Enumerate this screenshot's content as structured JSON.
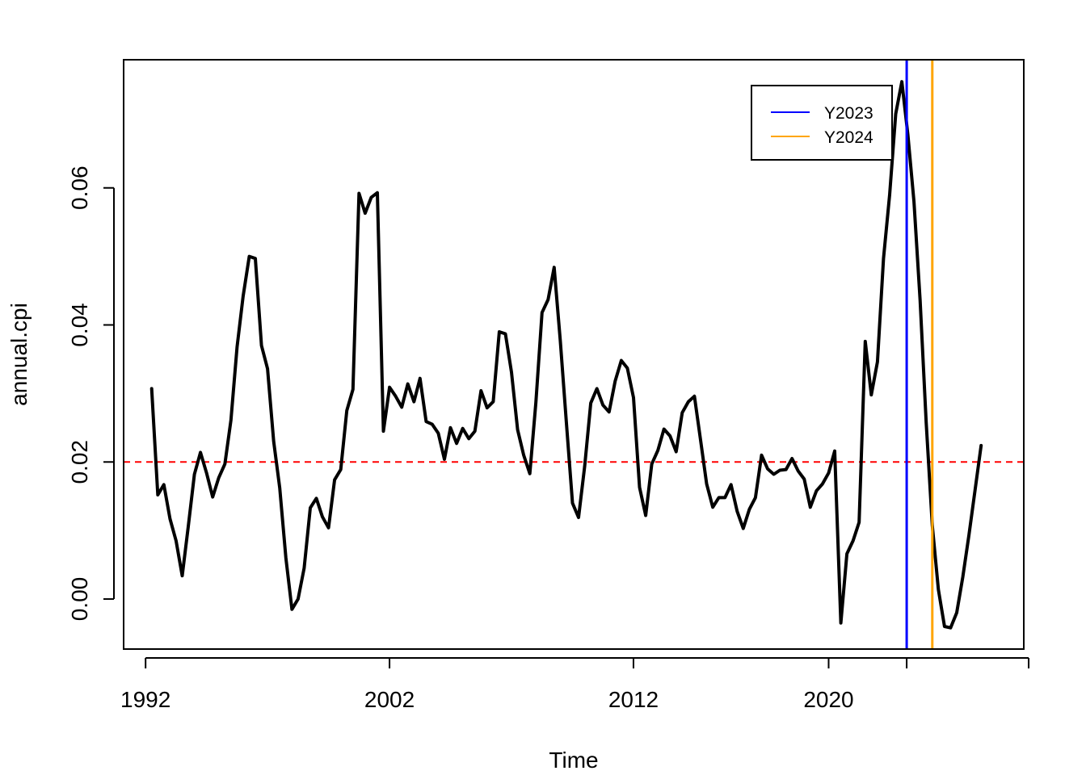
{
  "chart_data": {
    "type": "line",
    "xlabel": "Time",
    "ylabel": "annual.cpi",
    "x_ticks": [
      1992,
      2002,
      2012,
      2020
    ],
    "x_tick_labels": [
      "1992",
      "2002",
      "2012",
      "2020"
    ],
    "x_extra_ticks": [
      2023.2,
      2028.2
    ],
    "y_ticks": [
      0.0,
      0.02,
      0.04,
      0.06
    ],
    "y_tick_labels": [
      "0.00",
      "0.02",
      "0.04",
      "0.06"
    ],
    "xlim": [
      1991.1,
      2028.0
    ],
    "ylim": [
      -0.0073,
      0.0787
    ],
    "reference_line": {
      "y": 0.02,
      "color": "#ff0000",
      "style": "dashed"
    },
    "series": [
      {
        "color": "#000000",
        "x": [
          1992.25,
          1992.5,
          1992.75,
          1993,
          1993.25,
          1993.5,
          1993.75,
          1994,
          1994.25,
          1994.5,
          1994.75,
          1995,
          1995.25,
          1995.5,
          1995.75,
          1996,
          1996.25,
          1996.5,
          1996.75,
          1997,
          1997.25,
          1997.5,
          1997.75,
          1998,
          1998.25,
          1998.5,
          1998.75,
          1999,
          1999.25,
          1999.5,
          1999.75,
          2000,
          2000.25,
          2000.5,
          2000.75,
          2001,
          2001.25,
          2001.5,
          2001.75,
          2002,
          2002.25,
          2002.5,
          2002.75,
          2003,
          2003.25,
          2003.5,
          2003.75,
          2004,
          2004.25,
          2004.5,
          2004.75,
          2005,
          2005.25,
          2005.5,
          2005.75,
          2006,
          2006.25,
          2006.5,
          2006.75,
          2007,
          2007.25,
          2007.5,
          2007.75,
          2008,
          2008.25,
          2008.5,
          2008.75,
          2009,
          2009.25,
          2009.5,
          2009.75,
          2010,
          2010.25,
          2010.5,
          2010.75,
          2011,
          2011.25,
          2011.5,
          2011.75,
          2012,
          2012.25,
          2012.5,
          2012.75,
          2013,
          2013.25,
          2013.5,
          2013.75,
          2014,
          2014.25,
          2014.5,
          2014.75,
          2015,
          2015.25,
          2015.5,
          2015.75,
          2016,
          2016.25,
          2016.5,
          2016.75,
          2017,
          2017.25,
          2017.5,
          2017.75,
          2018,
          2018.25,
          2018.5,
          2018.75,
          2019,
          2019.25,
          2019.5,
          2019.75,
          2020,
          2020.25,
          2020.5,
          2020.75,
          2021,
          2021.25,
          2021.5,
          2021.75,
          2022,
          2022.25,
          2022.5,
          2022.75,
          2023,
          2023.25,
          2023.5,
          2023.75,
          2024,
          2024.25,
          2024.5,
          2024.75,
          2025,
          2025.25,
          2025.5,
          2025.75,
          2026,
          2026.25
        ],
        "y": [
          0.0307,
          0.0152,
          0.0167,
          0.0117,
          0.0085,
          0.0034,
          0.0106,
          0.0182,
          0.0214,
          0.0184,
          0.0149,
          0.0177,
          0.0197,
          0.0261,
          0.0368,
          0.0442,
          0.05,
          0.0497,
          0.037,
          0.0336,
          0.023,
          0.0162,
          0.006,
          -0.0015,
          0.0,
          0.0045,
          0.0133,
          0.0147,
          0.012,
          0.0104,
          0.0174,
          0.0189,
          0.0275,
          0.0306,
          0.0592,
          0.0563,
          0.0586,
          0.0593,
          0.0245,
          0.0309,
          0.0296,
          0.028,
          0.0314,
          0.0288,
          0.0322,
          0.0259,
          0.0255,
          0.0242,
          0.0204,
          0.025,
          0.0227,
          0.0249,
          0.0234,
          0.0245,
          0.0304,
          0.0279,
          0.0288,
          0.039,
          0.0387,
          0.0331,
          0.0247,
          0.021,
          0.0183,
          0.0287,
          0.0418,
          0.0437,
          0.0484,
          0.0377,
          0.0258,
          0.014,
          0.0119,
          0.0194,
          0.0286,
          0.0307,
          0.0283,
          0.0273,
          0.0318,
          0.0348,
          0.0337,
          0.0294,
          0.0163,
          0.0122,
          0.0197,
          0.0217,
          0.0248,
          0.0238,
          0.0215,
          0.0272,
          0.0288,
          0.0296,
          0.0232,
          0.0168,
          0.0134,
          0.0148,
          0.0148,
          0.0167,
          0.0128,
          0.0103,
          0.0131,
          0.0148,
          0.021,
          0.019,
          0.0182,
          0.0188,
          0.0189,
          0.0205,
          0.0187,
          0.0175,
          0.0134,
          0.0158,
          0.0168,
          0.0184,
          0.0216,
          -0.0035,
          0.0066,
          0.0085,
          0.0112,
          0.0376,
          0.0298,
          0.0346,
          0.0497,
          0.059,
          0.0708,
          0.0755,
          0.0677,
          0.058,
          0.0436,
          0.0258,
          0.0107,
          0.0014,
          -0.004,
          -0.0042,
          -0.002,
          0.0032,
          0.0093,
          0.0158,
          0.0224
        ]
      }
    ],
    "vlines": [
      {
        "name": "Y2023",
        "x": 2023.2,
        "color": "#0000ff"
      },
      {
        "name": "Y2024",
        "x": 2024.25,
        "color": "#ffa500"
      }
    ],
    "legend": {
      "position": "top-right",
      "entries": [
        {
          "label": "Y2023",
          "color": "#0000ff"
        },
        {
          "label": "Y2024",
          "color": "#ffa500"
        }
      ]
    }
  }
}
